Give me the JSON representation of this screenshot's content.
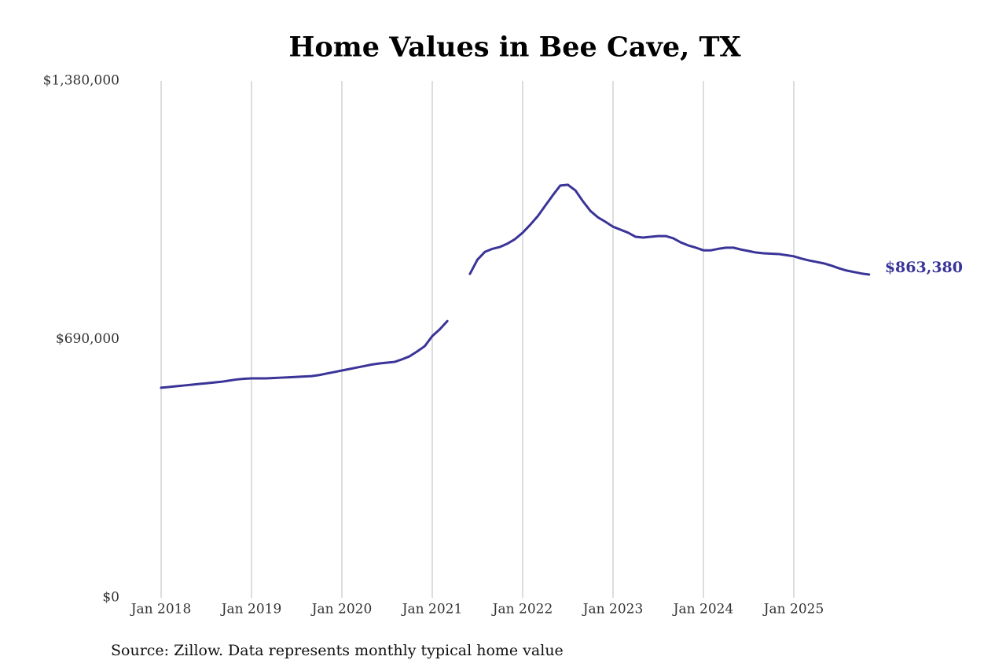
{
  "chart_data": {
    "type": "line",
    "title": "Home Values in Bee Cave, TX",
    "source": "Source: Zillow. Data represents monthly typical home value",
    "categories": [
      "Jan 2018",
      null,
      null,
      null,
      null,
      null,
      null,
      null,
      null,
      null,
      null,
      null,
      "Jan 2019",
      null,
      null,
      null,
      null,
      null,
      null,
      null,
      null,
      null,
      null,
      null,
      "Jan 2020",
      null,
      null,
      null,
      null,
      null,
      null,
      null,
      null,
      null,
      null,
      null,
      "Jan 2021",
      null,
      null,
      null,
      null,
      null,
      null,
      null,
      null,
      null,
      null,
      null,
      "Jan 2022",
      null,
      null,
      null,
      null,
      null,
      null,
      null,
      null,
      null,
      null,
      null,
      "Jan 2023",
      null,
      null,
      null,
      null,
      null,
      null,
      null,
      null,
      null,
      null,
      null,
      "Jan 2024",
      null,
      null,
      null,
      null,
      null,
      null,
      null,
      null,
      null,
      null,
      null,
      "Jan 2025",
      null,
      null,
      null,
      null,
      null,
      null,
      null,
      null,
      null,
      null
    ],
    "series": [
      {
        "name": "Home value",
        "color": "#3b3498",
        "values": [
          561000,
          563000,
          565000,
          567000,
          569000,
          571000,
          573000,
          575000,
          577000,
          580000,
          583000,
          585000,
          586000,
          586000,
          586000,
          587000,
          588000,
          589000,
          590000,
          591000,
          592000,
          595000,
          599000,
          603000,
          607000,
          611000,
          615000,
          619000,
          623000,
          626000,
          628000,
          630000,
          637000,
          645000,
          658000,
          672000,
          699000,
          717000,
          739000,
          null,
          null,
          865000,
          903000,
          924000,
          932000,
          937000,
          946000,
          958000,
          975000,
          996000,
          1019000,
          1047000,
          1075000,
          1101000,
          1103000,
          1088000,
          1059000,
          1033000,
          1016000,
          1004000,
          991000,
          983000,
          975000,
          964000,
          962000,
          964000,
          966000,
          966000,
          960000,
          949000,
          941000,
          935000,
          928000,
          928000,
          932000,
          935000,
          935000,
          930000,
          926000,
          922000,
          920000,
          919000,
          918000,
          915000,
          912000,
          906000,
          901000,
          897000,
          893000,
          887000,
          880000,
          874000,
          870000,
          866000,
          863380
        ],
        "value_labels": [
          null,
          null,
          null,
          null,
          null,
          null,
          null,
          null,
          null,
          null,
          null,
          null,
          null,
          null,
          null,
          null,
          null,
          null,
          null,
          null,
          null,
          null,
          null,
          null,
          null,
          null,
          null,
          null,
          null,
          null,
          null,
          null,
          null,
          null,
          null,
          null,
          null,
          null,
          null,
          null,
          null,
          null,
          null,
          null,
          null,
          null,
          null,
          null,
          null,
          null,
          null,
          null,
          null,
          null,
          null,
          null,
          null,
          null,
          null,
          null,
          null,
          null,
          null,
          null,
          null,
          null,
          null,
          null,
          null,
          null,
          null,
          null,
          null,
          null,
          null,
          null,
          null,
          null,
          null,
          null,
          null,
          null,
          null,
          null,
          null,
          null,
          null,
          null,
          null,
          null,
          null,
          null,
          null,
          null,
          "$863,380"
        ]
      }
    ],
    "ylim": [
      0,
      1380000
    ],
    "yticks": [
      {
        "value": 0,
        "label": "$0"
      },
      {
        "value": 690000,
        "label": "$690,000"
      },
      {
        "value": 1380000,
        "label": "$1,380,000"
      }
    ],
    "grid": "x"
  }
}
